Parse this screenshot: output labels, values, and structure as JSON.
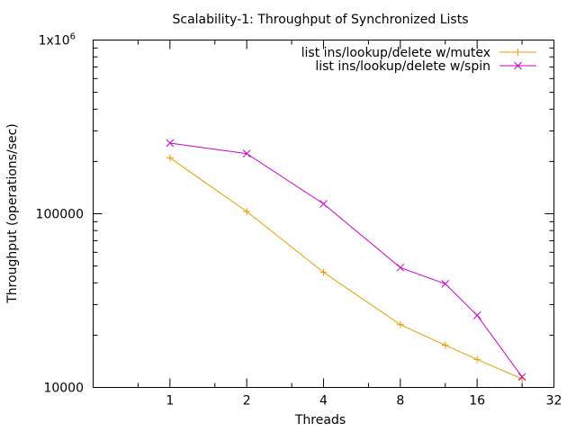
{
  "chart_data": {
    "type": "line",
    "title": "Scalability-1: Throughput of Synchronized Lists",
    "xlabel": "Threads",
    "ylabel": "Throughput (operations/sec)",
    "x_scale": "log2",
    "y_scale": "log10",
    "xlim": [
      0.5,
      32
    ],
    "ylim": [
      10000,
      1000000
    ],
    "x_ticks": [
      1,
      2,
      4,
      8,
      16,
      32
    ],
    "x_tick_labels": [
      "1",
      "2",
      "4",
      "8",
      "16",
      "32"
    ],
    "y_ticks": [
      10000,
      100000,
      1000000
    ],
    "y_tick_labels": [
      "10000",
      "100000",
      "1x10"
    ],
    "y_tick_superscript": {
      "2": "6"
    },
    "legend_position": "top-right",
    "grid": false,
    "series": [
      {
        "name": "list ins/lookup/delete w/mutex",
        "color": "#e69f00",
        "marker": "plus",
        "x": [
          1,
          2,
          4,
          8,
          12,
          16,
          24
        ],
        "y": [
          210000,
          103000,
          46000,
          23000,
          17500,
          14500,
          11200
        ]
      },
      {
        "name": "list ins/lookup/delete w/spin",
        "color": "#cc00cc",
        "marker": "cross",
        "x": [
          1,
          2,
          4,
          8,
          12,
          16,
          24
        ],
        "y": [
          255000,
          222000,
          114000,
          49000,
          39500,
          26000,
          11500
        ]
      }
    ]
  }
}
